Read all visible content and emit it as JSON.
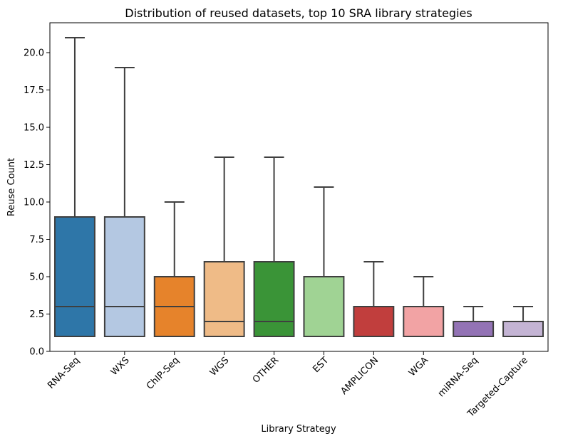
{
  "chart_data": {
    "type": "box",
    "title": "Distribution of reused datasets, top 10 SRA library strategies",
    "xlabel": "Library Strategy",
    "ylabel": "Reuse Count",
    "ylim": [
      0,
      22
    ],
    "yticks": [
      0.0,
      2.5,
      5.0,
      7.5,
      10.0,
      12.5,
      15.0,
      17.5,
      20.0
    ],
    "ytick_labels": [
      "0.0",
      "2.5",
      "5.0",
      "7.5",
      "10.0",
      "12.5",
      "15.0",
      "17.5",
      "20.0"
    ],
    "grid": false,
    "legend": "none",
    "categories": [
      "RNA-Seq",
      "WXS",
      "ChIP-Seq",
      "WGS",
      "OTHER",
      "EST",
      "AMPLICON",
      "WGA",
      "miRNA-Seq",
      "Targeted-Capture"
    ],
    "boxes": [
      {
        "category": "RNA-Seq",
        "whisker_low": 1,
        "q1": 1,
        "median": 3,
        "q3": 9,
        "whisker_high": 21,
        "color": "#2e76a8"
      },
      {
        "category": "WXS",
        "whisker_low": 1,
        "q1": 1,
        "median": 3,
        "q3": 9,
        "whisker_high": 19,
        "color": "#b4c8e2"
      },
      {
        "category": "ChIP-Seq",
        "whisker_low": 1,
        "q1": 1,
        "median": 3,
        "q3": 5,
        "whisker_high": 10,
        "color": "#e6832b"
      },
      {
        "category": "WGS",
        "whisker_low": 1,
        "q1": 1,
        "median": 2,
        "q3": 6,
        "whisker_high": 13,
        "color": "#efbb87"
      },
      {
        "category": "OTHER",
        "whisker_low": 1,
        "q1": 1,
        "median": 2,
        "q3": 6,
        "whisker_high": 13,
        "color": "#3a9437"
      },
      {
        "category": "EST",
        "whisker_low": 1,
        "q1": 1,
        "median": 1,
        "q3": 5,
        "whisker_high": 11,
        "color": "#a0d394"
      },
      {
        "category": "AMPLICON",
        "whisker_low": 1,
        "q1": 1,
        "median": 1,
        "q3": 3,
        "whisker_high": 6,
        "color": "#c13e3d"
      },
      {
        "category": "WGA",
        "whisker_low": 1,
        "q1": 1,
        "median": 1,
        "q3": 3,
        "whisker_high": 5,
        "color": "#f2a3a4"
      },
      {
        "category": "miRNA-Seq",
        "whisker_low": 1,
        "q1": 1,
        "median": 1,
        "q3": 2,
        "whisker_high": 3,
        "color": "#9373b5"
      },
      {
        "category": "Targeted-Capture",
        "whisker_low": 1,
        "q1": 1,
        "median": 1,
        "q3": 2,
        "whisker_high": 3,
        "color": "#c4b4d4"
      }
    ],
    "line_color": "#3f3f3f"
  }
}
